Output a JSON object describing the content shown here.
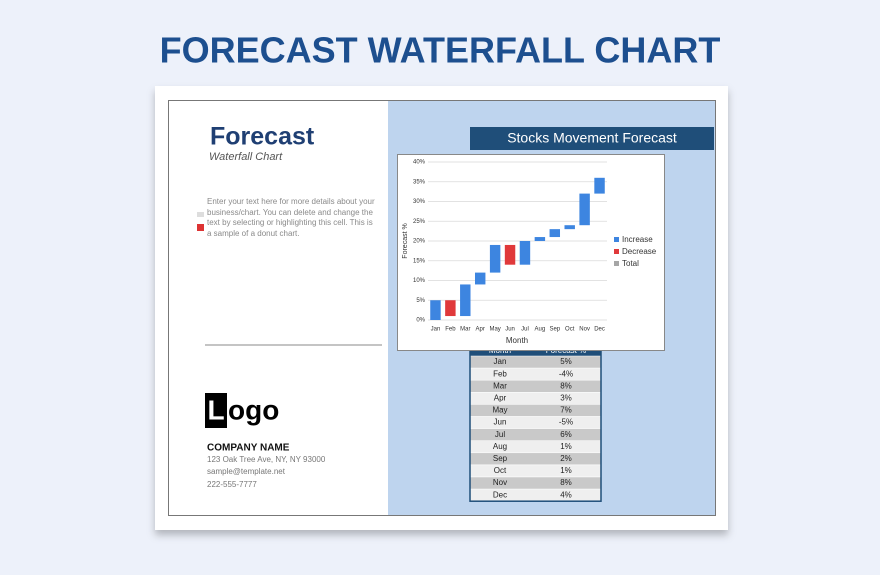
{
  "title": "FORECAST WATERFALL CHART",
  "sidebar": {
    "heading": "Forecast",
    "subheading": "Waterfall Chart",
    "body": "Enter your text here for more details about your business/chart. You can delete and change the text by selecting or highlighting this cell. This is a sample of a donut chart.",
    "logo": {
      "mark": "L",
      "text": "ogo"
    },
    "company": {
      "name": "COMPANY NAME",
      "address": "123 Oak Tree Ave, NY, NY 93000",
      "email": "sample@template.net",
      "phone": "222-555-7777"
    }
  },
  "table": {
    "headers": [
      "Month",
      "Forecast %"
    ]
  },
  "chart_data": {
    "type": "waterfall",
    "title": "Stocks Movement Forecast",
    "x_label": "Month",
    "y_label": "Forecast %",
    "categories": [
      "Jan",
      "Feb",
      "Mar",
      "Apr",
      "May",
      "Jun",
      "Jul",
      "Aug",
      "Sep",
      "Oct",
      "Nov",
      "Dec"
    ],
    "values": [
      5,
      -4,
      8,
      3,
      7,
      -5,
      6,
      1,
      2,
      1,
      8,
      4
    ],
    "value_labels": [
      "5%",
      "-4%",
      "8%",
      "3%",
      "7%",
      "-5%",
      "6%",
      "1%",
      "2%",
      "1%",
      "8%",
      "4%"
    ],
    "legend": [
      {
        "name": "Increase",
        "color": "#3d85e0"
      },
      {
        "name": "Decrease",
        "color": "#e0393b"
      },
      {
        "name": "Total",
        "color": "#a6a6a6"
      }
    ],
    "ylim": [
      0,
      40
    ],
    "yticks": [
      {
        "value": 0,
        "label": "0%"
      },
      {
        "value": 5,
        "label": "5%"
      },
      {
        "value": 10,
        "label": "10%"
      },
      {
        "value": 15,
        "label": "15%"
      },
      {
        "value": 20,
        "label": "20%"
      },
      {
        "value": 25,
        "label": "25%"
      },
      {
        "value": 30,
        "label": "30%"
      },
      {
        "value": 35,
        "label": "35%"
      },
      {
        "value": 40,
        "label": "40%"
      }
    ],
    "grid": true
  }
}
